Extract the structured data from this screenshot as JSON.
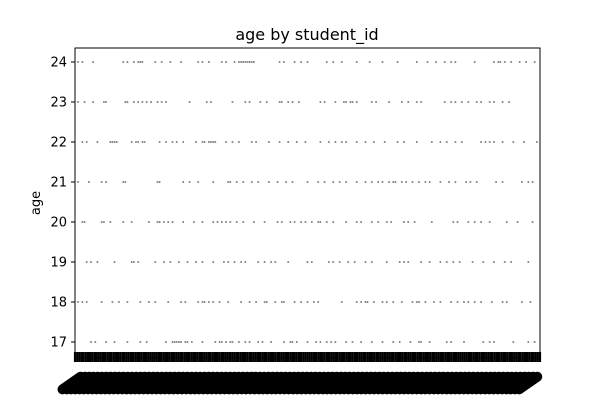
{
  "chart_data": {
    "type": "scatter",
    "title": "age by student_id",
    "xlabel": "",
    "ylabel": "age",
    "ylim": [
      16.6,
      24.35
    ],
    "y_ticks": [
      "17",
      "18",
      "19",
      "20",
      "21",
      "22",
      "23",
      "24"
    ],
    "x_tick_labels_legible": false,
    "grid": false,
    "marker_color": "#808080",
    "rows": [
      {
        "age": 24,
        "x": [
          1,
          3,
          8,
          22,
          24,
          27,
          29,
          30,
          31,
          37,
          40,
          44,
          49,
          57,
          59,
          62,
          68,
          70,
          74,
          76,
          77,
          78,
          79,
          80,
          81,
          82,
          83,
          95,
          97,
          102,
          105,
          108,
          117,
          120,
          124,
          131,
          137,
          143,
          150,
          159,
          164,
          168,
          172,
          175,
          177,
          186,
          195,
          197,
          198,
          200,
          203,
          207,
          210,
          214
        ]
      },
      {
        "age": 23,
        "x": [
          1,
          4,
          8,
          13,
          14,
          23,
          24,
          27,
          29,
          31,
          33,
          35,
          38,
          40,
          42,
          53,
          61,
          63,
          73,
          79,
          81,
          86,
          89,
          95,
          96,
          99,
          101,
          104,
          114,
          116,
          121,
          125,
          126,
          128,
          129,
          131,
          138,
          140,
          146,
          152,
          155,
          159,
          161,
          172,
          175,
          177,
          180,
          183,
          187,
          189,
          193,
          195,
          199,
          202
        ]
      },
      {
        "age": 22,
        "x": [
          3,
          5,
          10,
          16,
          17,
          18,
          19,
          26,
          28,
          29,
          31,
          32,
          39,
          42,
          45,
          47,
          50,
          56,
          59,
          60,
          62,
          63,
          64,
          65,
          70,
          73,
          76,
          82,
          84,
          90,
          95,
          99,
          103,
          107,
          114,
          118,
          121,
          124,
          126,
          131,
          135,
          139,
          144,
          150,
          153,
          159,
          166,
          170,
          173,
          177,
          180,
          189,
          191,
          193,
          195,
          199,
          204,
          209,
          215
        ]
      },
      {
        "age": 21,
        "x": [
          1,
          6,
          12,
          14,
          22,
          23,
          38,
          39,
          50,
          53,
          57,
          64,
          71,
          72,
          75,
          78,
          82,
          85,
          90,
          94,
          98,
          101,
          108,
          113,
          116,
          120,
          123,
          126,
          131,
          135,
          138,
          141,
          143,
          146,
          148,
          149,
          152,
          154,
          157,
          160,
          163,
          165,
          170,
          174,
          177,
          182,
          184,
          187,
          196,
          199,
          208,
          211,
          213
        ]
      },
      {
        "age": 20,
        "x": [
          3,
          4,
          12,
          13,
          16,
          22,
          26,
          34,
          38,
          39,
          41,
          43,
          45,
          50,
          55,
          59,
          64,
          66,
          68,
          70,
          72,
          75,
          78,
          83,
          88,
          94,
          96,
          100,
          102,
          105,
          107,
          110,
          113,
          114,
          117,
          120,
          126,
          131,
          133,
          138,
          141,
          145,
          147,
          153,
          155,
          158,
          166,
          176,
          178,
          183,
          186,
          189,
          193,
          201,
          206,
          213
        ]
      },
      {
        "age": 19,
        "x": [
          5,
          7,
          10,
          18,
          26,
          27,
          29,
          37,
          41,
          44,
          48,
          52,
          56,
          59,
          64,
          69,
          71,
          74,
          77,
          79,
          85,
          88,
          91,
          93,
          99,
          108,
          110,
          118,
          120,
          123,
          127,
          130,
          135,
          138,
          145,
          151,
          153,
          155,
          161,
          165,
          170,
          173,
          176,
          179,
          185,
          190,
          195,
          200,
          203,
          211
        ]
      },
      {
        "age": 18,
        "x": [
          1,
          3,
          5,
          12,
          17,
          20,
          24,
          30,
          34,
          37,
          43,
          49,
          51,
          57,
          59,
          60,
          62,
          64,
          67,
          71,
          77,
          81,
          84,
          88,
          89,
          93,
          96,
          97,
          102,
          105,
          108,
          111,
          113,
          124,
          131,
          133,
          135,
          136,
          139,
          143,
          145,
          148,
          152,
          157,
          159,
          160,
          163,
          167,
          170,
          175,
          178,
          181,
          183,
          186,
          189,
          194,
          199,
          201,
          208,
          212
        ]
      },
      {
        "age": 17,
        "x": [
          7,
          9,
          14,
          18,
          24,
          30,
          33,
          42,
          45,
          46,
          47,
          48,
          49,
          51,
          52,
          54,
          59,
          65,
          67,
          68,
          70,
          72,
          73,
          76,
          79,
          81,
          85,
          87,
          91,
          97,
          100,
          101,
          103,
          108,
          112,
          114,
          117,
          119,
          121,
          126,
          129,
          133,
          138,
          143,
          148,
          151,
          156,
          160,
          161,
          165,
          173,
          175,
          181,
          190,
          193,
          195,
          204,
          211,
          214
        ]
      }
    ]
  }
}
